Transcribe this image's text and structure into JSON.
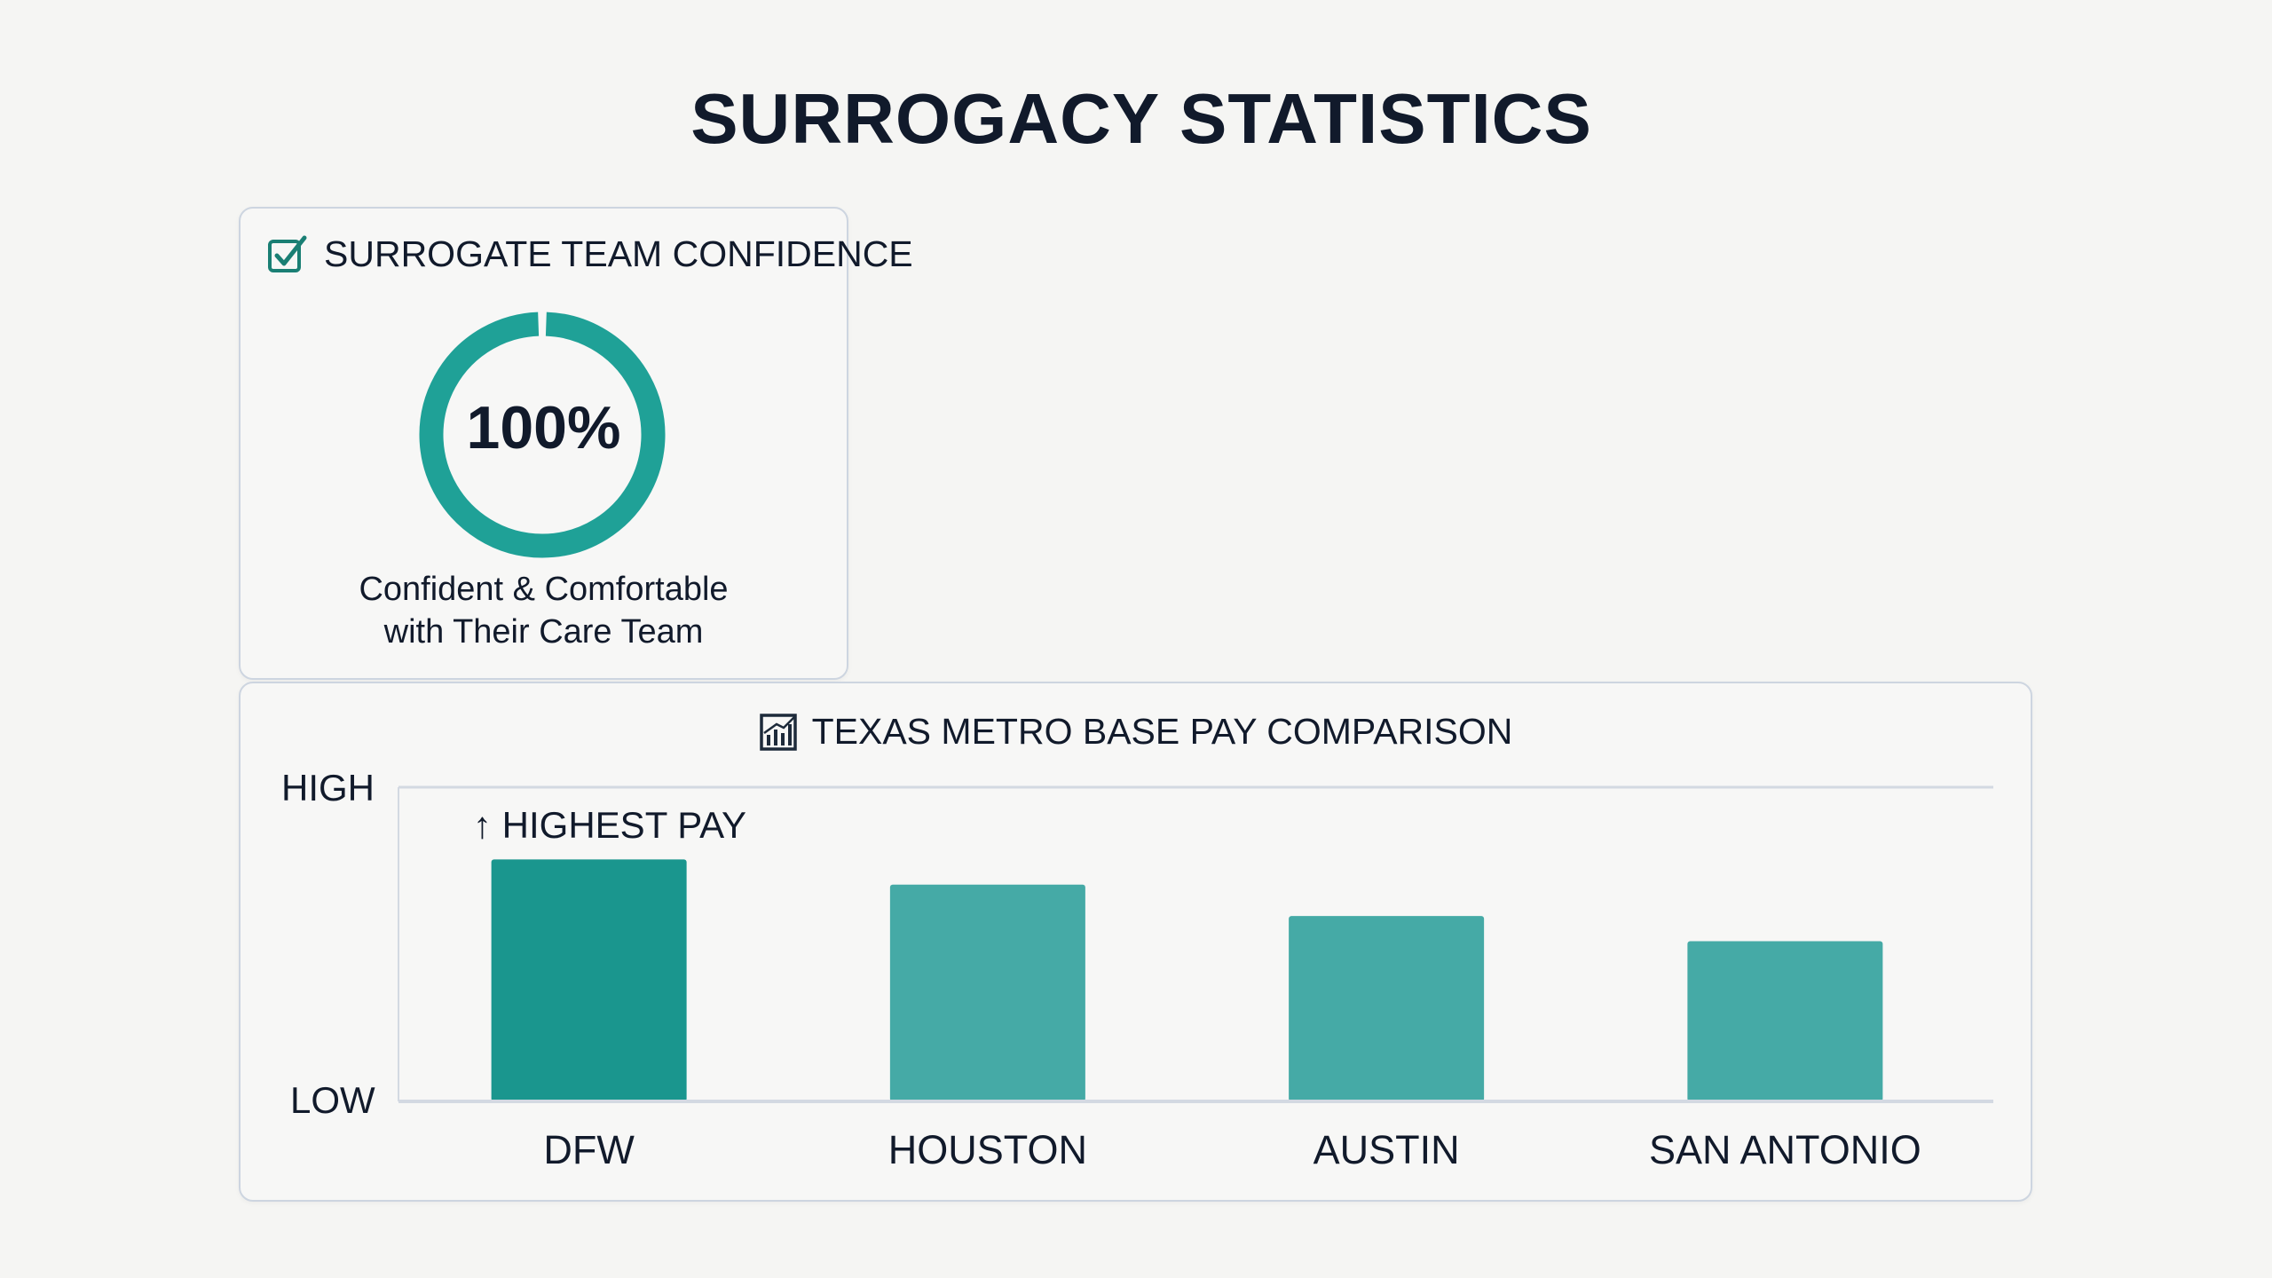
{
  "title": "SURROGACY STATISTICS",
  "confidence_card": {
    "heading": "SURROGATE TEAM CONFIDENCE",
    "icon": "checkbox-checked-icon",
    "value_label": "100%",
    "value_fraction": 1.0,
    "caption_line1": "Confident & Comfortable",
    "caption_line2": "with Their Care Team",
    "ring_color": "#1fa197"
  },
  "pay_card": {
    "heading": "TEXAS METRO BASE PAY COMPARISON",
    "icon": "bar-chart-icon",
    "annotation": "↑ HIGHEST PAY"
  },
  "chart_data": {
    "type": "bar",
    "title": "TEXAS METRO BASE PAY COMPARISON",
    "categories": [
      "DFW",
      "HOUSTON",
      "AUSTIN",
      "SAN ANTONIO"
    ],
    "values": [
      0.77,
      0.69,
      0.59,
      0.51
    ],
    "ylim": [
      0,
      1
    ],
    "yticks": [
      "LOW",
      "HIGH"
    ],
    "xlabel": "",
    "ylabel": "",
    "grid": false,
    "highlight_index": 0,
    "colors": {
      "highlight": "#1a968e",
      "default": "#45aaa6",
      "axis": "#d3d9e2"
    }
  }
}
